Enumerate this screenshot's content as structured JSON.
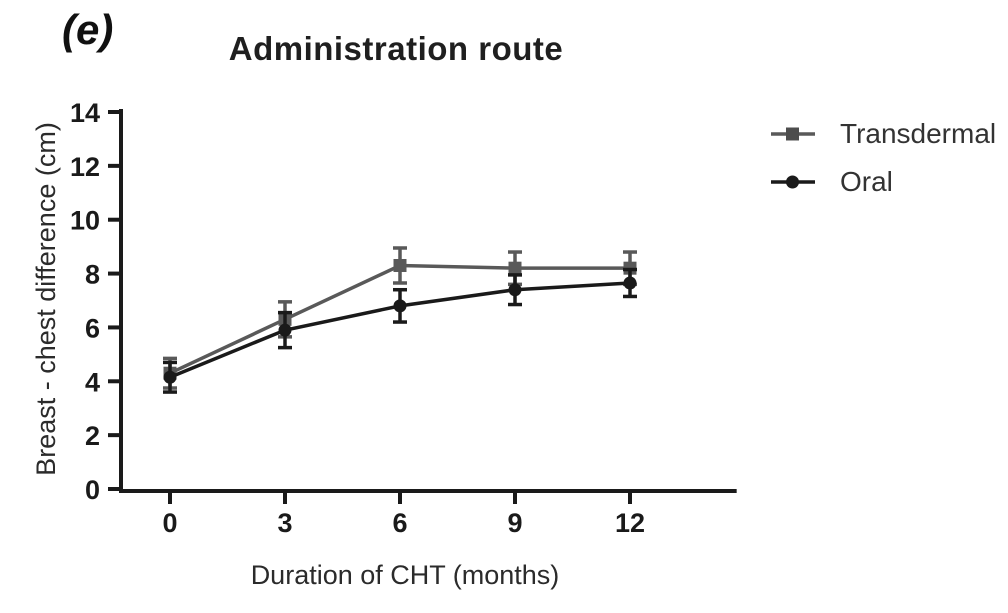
{
  "figure": {
    "panel_label": "(e)",
    "title": "Administration route"
  },
  "chart_data": {
    "type": "line",
    "title": "Administration route",
    "xlabel": "Duration of CHT (months)",
    "ylabel": "Breast - chest difference (cm)",
    "x": [
      0,
      3,
      6,
      9,
      12
    ],
    "x_ticks": [
      0,
      3,
      6,
      9,
      12
    ],
    "y_ticks": [
      0,
      2,
      4,
      6,
      8,
      10,
      12,
      14
    ],
    "xlim": [
      0,
      13.4
    ],
    "ylim": [
      0,
      14
    ],
    "grid": false,
    "legend_position": "right",
    "error_bars": true,
    "axis_color": "#1a1a1a",
    "series": [
      {
        "name": "Transdermal",
        "marker": "square",
        "color": "#595959",
        "values": [
          4.3,
          6.3,
          8.3,
          8.2,
          8.2
        ],
        "errors": [
          0.55,
          0.65,
          0.65,
          0.6,
          0.6
        ]
      },
      {
        "name": "Oral",
        "marker": "circle",
        "color": "#1a1a1a",
        "values": [
          4.15,
          5.9,
          6.8,
          7.4,
          7.65
        ],
        "errors": [
          0.55,
          0.65,
          0.6,
          0.55,
          0.5
        ]
      }
    ]
  }
}
